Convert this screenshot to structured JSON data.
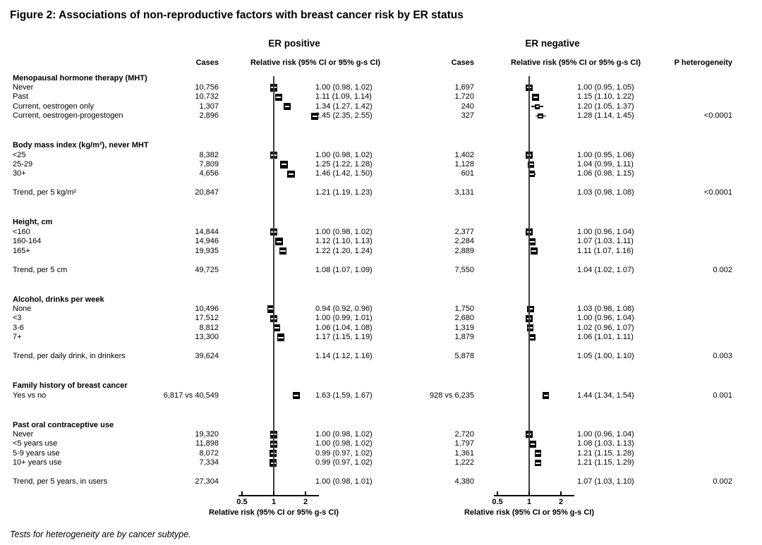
{
  "figure": {
    "title": "Figure 2: Associations of non-reproductive factors with breast cancer risk by ER status",
    "footnote": "Tests for heterogeneity are by cancer subtype."
  },
  "panels": [
    {
      "title": "ER positive",
      "cases_header": "Cases",
      "rr_header": "Relative risk (95% CI or 95% g-s CI)"
    },
    {
      "title": "ER negative",
      "cases_header": "Cases",
      "rr_header": "Relative risk (95% CI or 95% g-s CI)"
    }
  ],
  "p_het_header": "P heterogeneity",
  "axis": {
    "scale": "log",
    "ticks": [
      0.5,
      1,
      2
    ],
    "tick_labels": [
      "0.5",
      "1",
      "2"
    ],
    "label": "Relative risk (95% CI or 95% g-s CI)"
  },
  "colors": {
    "text": "#000000",
    "background": "#ffffff",
    "marker": "#000000",
    "reference_line": "#3c3c3c"
  },
  "chart_data": {
    "type": "scatter",
    "subtype": "forest-plot",
    "x_scale": "log",
    "xlim": [
      0.42,
      2.9
    ],
    "sections": [
      {
        "header": "Menopausal hormone therapy (MHT)",
        "rows": [
          {
            "label": "Never",
            "pos": {
              "cases": "10,756",
              "rr": 1.0,
              "lo": 0.98,
              "hi": 1.02,
              "text": "1.00 (0.98, 1.02)"
            },
            "neg": {
              "cases": "1,697",
              "rr": 1.0,
              "lo": 0.95,
              "hi": 1.05,
              "text": "1.00 (0.95, 1.05)"
            }
          },
          {
            "label": "Past",
            "pos": {
              "cases": "10,732",
              "rr": 1.11,
              "lo": 1.09,
              "hi": 1.14,
              "text": "1.11 (1.09, 1.14)"
            },
            "neg": {
              "cases": "1,720",
              "rr": 1.15,
              "lo": 1.1,
              "hi": 1.22,
              "text": "1.15 (1.10, 1.22)"
            }
          },
          {
            "label": "Current, oestrogen only",
            "pos": {
              "cases": "1,307",
              "rr": 1.34,
              "lo": 1.27,
              "hi": 1.42,
              "text": "1.34 (1.27, 1.42)"
            },
            "neg": {
              "cases": "240",
              "rr": 1.2,
              "lo": 1.05,
              "hi": 1.37,
              "text": "1.20 (1.05, 1.37)"
            }
          },
          {
            "label": "Current, oestrogen-progestogen",
            "pos": {
              "cases": "2,896",
              "rr": 2.45,
              "lo": 2.35,
              "hi": 2.55,
              "text": "2.45 (2.35, 2.55)"
            },
            "neg": {
              "cases": "327",
              "rr": 1.28,
              "lo": 1.14,
              "hi": 1.45,
              "text": "1.28 (1.14, 1.45)"
            },
            "p_het": "<0.0001"
          }
        ]
      },
      {
        "header": "Body mass index (kg/m²), never MHT",
        "rows": [
          {
            "label": "<25",
            "pos": {
              "cases": "8,382",
              "rr": 1.0,
              "lo": 0.98,
              "hi": 1.02,
              "text": "1.00 (0.98, 1.02)"
            },
            "neg": {
              "cases": "1,402",
              "rr": 1.0,
              "lo": 0.95,
              "hi": 1.06,
              "text": "1.00 (0.95, 1.06)"
            }
          },
          {
            "label": "25-29",
            "pos": {
              "cases": "7,809",
              "rr": 1.25,
              "lo": 1.22,
              "hi": 1.28,
              "text": "1.25 (1.22, 1.28)"
            },
            "neg": {
              "cases": "1,128",
              "rr": 1.04,
              "lo": 0.99,
              "hi": 1.11,
              "text": "1.04 (0.99, 1.11)"
            }
          },
          {
            "label": "30+",
            "pos": {
              "cases": "4,656",
              "rr": 1.46,
              "lo": 1.42,
              "hi": 1.5,
              "text": "1.46 (1.42, 1.50)"
            },
            "neg": {
              "cases": "601",
              "rr": 1.06,
              "lo": 0.98,
              "hi": 1.15,
              "text": "1.06 (0.98, 1.15)"
            }
          },
          {
            "label": "Trend, per 5 kg/m²",
            "trend": true,
            "pos": {
              "cases": "20,847",
              "text": "1.21 (1.19, 1.23)"
            },
            "neg": {
              "cases": "3,131",
              "text": "1.03 (0.98, 1.08)"
            },
            "p_het": "<0.0001"
          }
        ]
      },
      {
        "header": "Height, cm",
        "rows": [
          {
            "label": "<160",
            "pos": {
              "cases": "14,844",
              "rr": 1.0,
              "lo": 0.98,
              "hi": 1.02,
              "text": "1.00 (0.98, 1.02)"
            },
            "neg": {
              "cases": "2,377",
              "rr": 1.0,
              "lo": 0.96,
              "hi": 1.04,
              "text": "1.00 (0.96, 1.04)"
            }
          },
          {
            "label": "160-164",
            "pos": {
              "cases": "14,946",
              "rr": 1.12,
              "lo": 1.1,
              "hi": 1.13,
              "text": "1.12 (1.10, 1.13)"
            },
            "neg": {
              "cases": "2,284",
              "rr": 1.07,
              "lo": 1.03,
              "hi": 1.11,
              "text": "1.07 (1.03, 1.11)"
            }
          },
          {
            "label": "165+",
            "pos": {
              "cases": "19,935",
              "rr": 1.22,
              "lo": 1.2,
              "hi": 1.24,
              "text": "1.22 (1.20, 1.24)"
            },
            "neg": {
              "cases": "2,889",
              "rr": 1.11,
              "lo": 1.07,
              "hi": 1.16,
              "text": "1.11 (1.07, 1.16)"
            }
          },
          {
            "label": "Trend, per 5 cm",
            "trend": true,
            "pos": {
              "cases": "49,725",
              "text": "1.08 (1.07, 1.09)"
            },
            "neg": {
              "cases": "7,550",
              "text": "1.04 (1.02, 1.07)"
            },
            "p_het": "0.002"
          }
        ]
      },
      {
        "header": "Alcohol, drinks per week",
        "rows": [
          {
            "label": "None",
            "pos": {
              "cases": "10,496",
              "rr": 0.94,
              "lo": 0.92,
              "hi": 0.96,
              "text": "0.94 (0.92, 0.96)"
            },
            "neg": {
              "cases": "1,750",
              "rr": 1.03,
              "lo": 0.98,
              "hi": 1.08,
              "text": "1.03 (0.98, 1.08)"
            }
          },
          {
            "label": "<3",
            "pos": {
              "cases": "17,512",
              "rr": 1.0,
              "lo": 0.99,
              "hi": 1.01,
              "text": "1.00 (0.99, 1.01)"
            },
            "neg": {
              "cases": "2,680",
              "rr": 1.0,
              "lo": 0.96,
              "hi": 1.04,
              "text": "1.00 (0.96, 1.04)"
            }
          },
          {
            "label": "3-6",
            "pos": {
              "cases": "8,812",
              "rr": 1.06,
              "lo": 1.04,
              "hi": 1.08,
              "text": "1.06 (1.04, 1.08)"
            },
            "neg": {
              "cases": "1,319",
              "rr": 1.02,
              "lo": 0.96,
              "hi": 1.07,
              "text": "1.02 (0.96, 1.07)"
            }
          },
          {
            "label": "7+",
            "pos": {
              "cases": "13,300",
              "rr": 1.17,
              "lo": 1.15,
              "hi": 1.19,
              "text": "1.17 (1.15, 1.19)"
            },
            "neg": {
              "cases": "1,879",
              "rr": 1.06,
              "lo": 1.01,
              "hi": 1.11,
              "text": "1.06 (1.01, 1.11)"
            }
          },
          {
            "label": "Trend, per daily drink, in drinkers",
            "trend": true,
            "pos": {
              "cases": "39,624",
              "text": "1.14 (1.12, 1.16)"
            },
            "neg": {
              "cases": "5,878",
              "text": "1.05 (1.00, 1.10)"
            },
            "p_het": "0.003"
          }
        ]
      },
      {
        "header": "Family history of breast cancer",
        "rows": [
          {
            "label": "Yes vs no",
            "pos": {
              "cases": "6,817 vs 40,549",
              "rr": 1.63,
              "lo": 1.59,
              "hi": 1.67,
              "text": "1.63 (1.59, 1.67)"
            },
            "neg": {
              "cases": "928 vs 6,235",
              "rr": 1.44,
              "lo": 1.34,
              "hi": 1.54,
              "text": "1.44 (1.34, 1.54)"
            },
            "p_het": "0.001"
          }
        ]
      },
      {
        "header": "Past oral contraceptive use",
        "rows": [
          {
            "label": "Never",
            "pos": {
              "cases": "19,320",
              "rr": 1.0,
              "lo": 0.98,
              "hi": 1.02,
              "text": "1.00 (0.98, 1.02)"
            },
            "neg": {
              "cases": "2,720",
              "rr": 1.0,
              "lo": 0.96,
              "hi": 1.04,
              "text": "1.00 (0.96, 1.04)"
            }
          },
          {
            "label": "<5 years use",
            "pos": {
              "cases": "11,898",
              "rr": 1.0,
              "lo": 0.98,
              "hi": 1.02,
              "text": "1.00 (0.98, 1.02)"
            },
            "neg": {
              "cases": "1,797",
              "rr": 1.08,
              "lo": 1.03,
              "hi": 1.13,
              "text": "1.08 (1.03, 1.13)"
            }
          },
          {
            "label": "5-9 years use",
            "pos": {
              "cases": "8,072",
              "rr": 0.99,
              "lo": 0.97,
              "hi": 1.02,
              "text": "0.99 (0.97, 1.02)"
            },
            "neg": {
              "cases": "1,361",
              "rr": 1.21,
              "lo": 1.15,
              "hi": 1.28,
              "text": "1.21 (1.15, 1.28)"
            }
          },
          {
            "label": "10+ years use",
            "pos": {
              "cases": "7,334",
              "rr": 0.99,
              "lo": 0.97,
              "hi": 1.02,
              "text": "0.99 (0.97, 1.02)"
            },
            "neg": {
              "cases": "1,222",
              "rr": 1.21,
              "lo": 1.15,
              "hi": 1.29,
              "text": "1.21 (1.15, 1.29)"
            }
          },
          {
            "label": "Trend, per 5 years, in users",
            "trend": true,
            "pos": {
              "cases": "27,304",
              "text": "1.00 (0.98, 1.01)"
            },
            "neg": {
              "cases": "4,380",
              "text": "1.07 (1.03, 1.10)"
            },
            "p_het": "0.002"
          }
        ]
      }
    ]
  }
}
